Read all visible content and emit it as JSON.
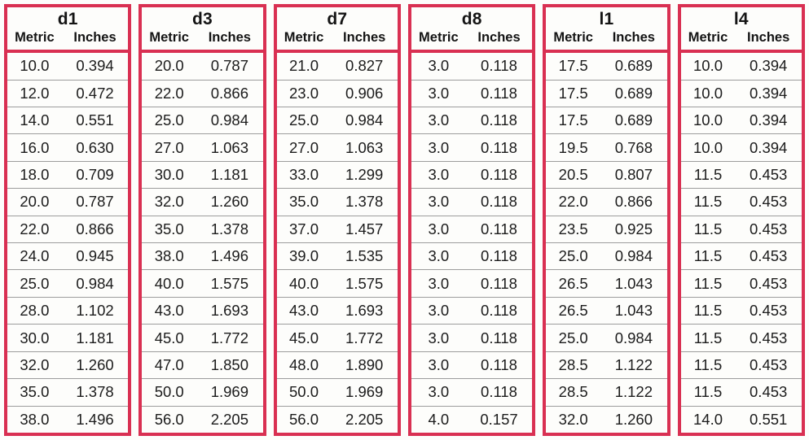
{
  "table": {
    "groups": [
      {
        "label": "d1",
        "col_headers": [
          "Metric",
          "Inches"
        ],
        "rows": [
          [
            "10.0",
            "0.394"
          ],
          [
            "12.0",
            "0.472"
          ],
          [
            "14.0",
            "0.551"
          ],
          [
            "16.0",
            "0.630"
          ],
          [
            "18.0",
            "0.709"
          ],
          [
            "20.0",
            "0.787"
          ],
          [
            "22.0",
            "0.866"
          ],
          [
            "24.0",
            "0.945"
          ],
          [
            "25.0",
            "0.984"
          ],
          [
            "28.0",
            "1.102"
          ],
          [
            "30.0",
            "1.181"
          ],
          [
            "32.0",
            "1.260"
          ],
          [
            "35.0",
            "1.378"
          ],
          [
            "38.0",
            "1.496"
          ]
        ]
      },
      {
        "label": "d3",
        "col_headers": [
          "Metric",
          "Inches"
        ],
        "rows": [
          [
            "20.0",
            "0.787"
          ],
          [
            "22.0",
            "0.866"
          ],
          [
            "25.0",
            "0.984"
          ],
          [
            "27.0",
            "1.063"
          ],
          [
            "30.0",
            "1.181"
          ],
          [
            "32.0",
            "1.260"
          ],
          [
            "35.0",
            "1.378"
          ],
          [
            "38.0",
            "1.496"
          ],
          [
            "40.0",
            "1.575"
          ],
          [
            "43.0",
            "1.693"
          ],
          [
            "45.0",
            "1.772"
          ],
          [
            "47.0",
            "1.850"
          ],
          [
            "50.0",
            "1.969"
          ],
          [
            "56.0",
            "2.205"
          ]
        ]
      },
      {
        "label": "d7",
        "col_headers": [
          "Metric",
          "Inches"
        ],
        "rows": [
          [
            "21.0",
            "0.827"
          ],
          [
            "23.0",
            "0.906"
          ],
          [
            "25.0",
            "0.984"
          ],
          [
            "27.0",
            "1.063"
          ],
          [
            "33.0",
            "1.299"
          ],
          [
            "35.0",
            "1.378"
          ],
          [
            "37.0",
            "1.457"
          ],
          [
            "39.0",
            "1.535"
          ],
          [
            "40.0",
            "1.575"
          ],
          [
            "43.0",
            "1.693"
          ],
          [
            "45.0",
            "1.772"
          ],
          [
            "48.0",
            "1.890"
          ],
          [
            "50.0",
            "1.969"
          ],
          [
            "56.0",
            "2.205"
          ]
        ]
      },
      {
        "label": "d8",
        "col_headers": [
          "Metric",
          "Inches"
        ],
        "rows": [
          [
            "3.0",
            "0.118"
          ],
          [
            "3.0",
            "0.118"
          ],
          [
            "3.0",
            "0.118"
          ],
          [
            "3.0",
            "0.118"
          ],
          [
            "3.0",
            "0.118"
          ],
          [
            "3.0",
            "0.118"
          ],
          [
            "3.0",
            "0.118"
          ],
          [
            "3.0",
            "0.118"
          ],
          [
            "3.0",
            "0.118"
          ],
          [
            "3.0",
            "0.118"
          ],
          [
            "3.0",
            "0.118"
          ],
          [
            "3.0",
            "0.118"
          ],
          [
            "3.0",
            "0.118"
          ],
          [
            "4.0",
            "0.157"
          ]
        ]
      },
      {
        "label": "l1",
        "col_headers": [
          "Metric",
          "Inches"
        ],
        "rows": [
          [
            "17.5",
            "0.689"
          ],
          [
            "17.5",
            "0.689"
          ],
          [
            "17.5",
            "0.689"
          ],
          [
            "19.5",
            "0.768"
          ],
          [
            "20.5",
            "0.807"
          ],
          [
            "22.0",
            "0.866"
          ],
          [
            "23.5",
            "0.925"
          ],
          [
            "25.0",
            "0.984"
          ],
          [
            "26.5",
            "1.043"
          ],
          [
            "26.5",
            "1.043"
          ],
          [
            "25.0",
            "0.984"
          ],
          [
            "28.5",
            "1.122"
          ],
          [
            "28.5",
            "1.122"
          ],
          [
            "32.0",
            "1.260"
          ]
        ]
      },
      {
        "label": "l4",
        "col_headers": [
          "Metric",
          "Inches"
        ],
        "rows": [
          [
            "10.0",
            "0.394"
          ],
          [
            "10.0",
            "0.394"
          ],
          [
            "10.0",
            "0.394"
          ],
          [
            "10.0",
            "0.394"
          ],
          [
            "11.5",
            "0.453"
          ],
          [
            "11.5",
            "0.453"
          ],
          [
            "11.5",
            "0.453"
          ],
          [
            "11.5",
            "0.453"
          ],
          [
            "11.5",
            "0.453"
          ],
          [
            "11.5",
            "0.453"
          ],
          [
            "11.5",
            "0.453"
          ],
          [
            "11.5",
            "0.453"
          ],
          [
            "11.5",
            "0.453"
          ],
          [
            "14.0",
            "0.551"
          ]
        ]
      }
    ]
  },
  "colors": {
    "border_red": "#d93052",
    "row_separator": "#9c9c9c",
    "text": "#1c1c1c",
    "background": "#fdfdfb"
  }
}
